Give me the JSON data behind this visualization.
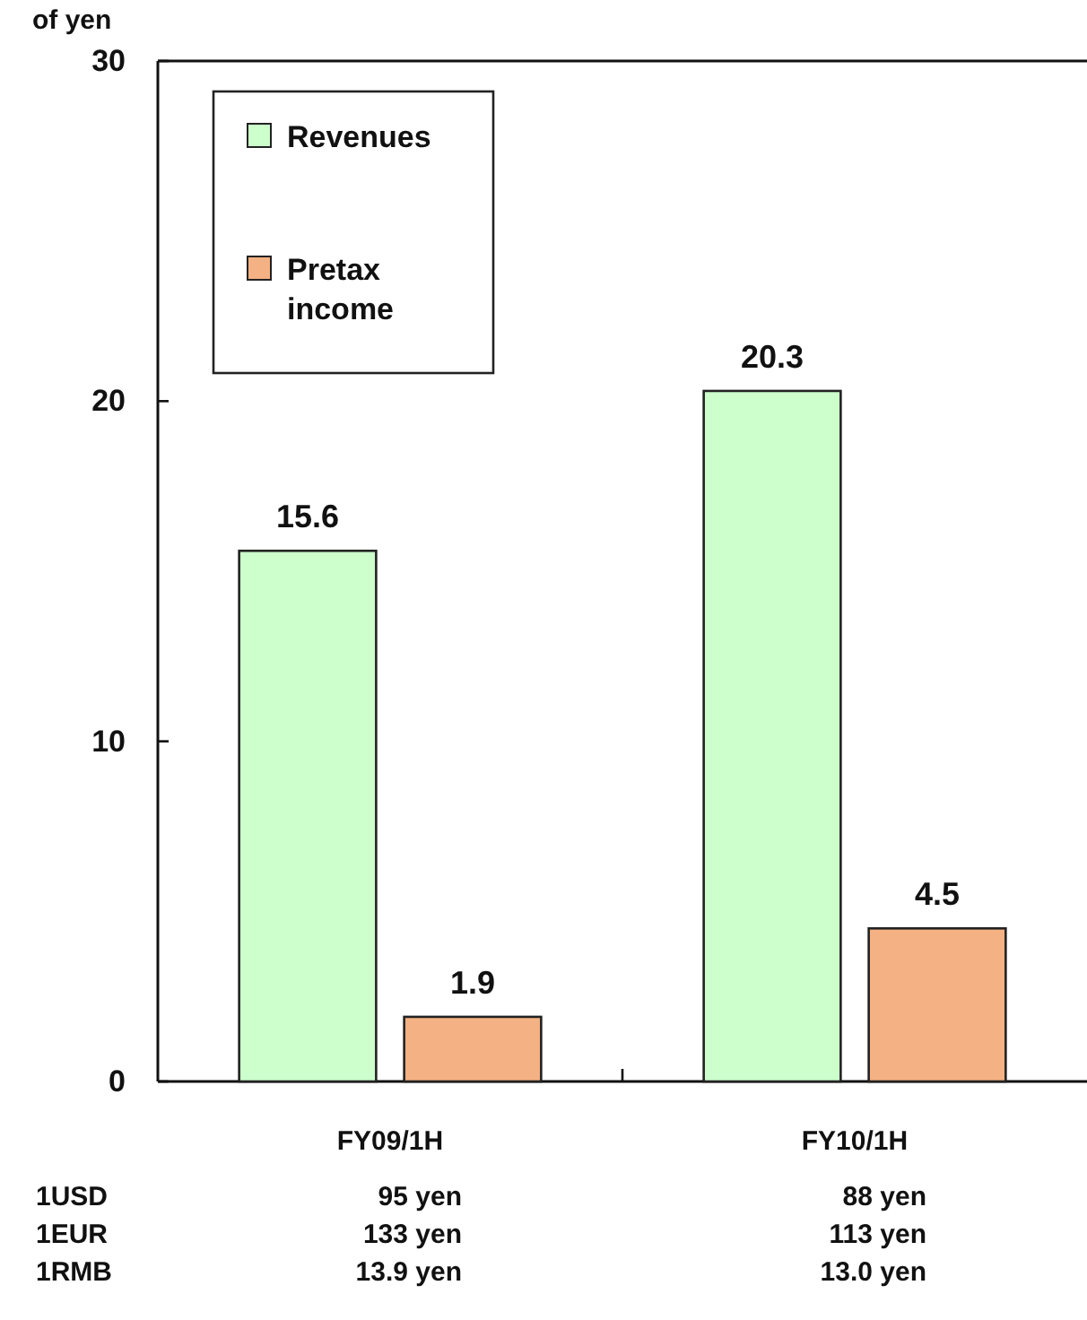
{
  "chart_data": {
    "type": "bar",
    "ylabel": "of yen",
    "categories": [
      "FY09/1H",
      "FY10/1H"
    ],
    "series": [
      {
        "name": "Revenues",
        "color": "#ccffcc",
        "values": [
          15.6,
          20.3
        ]
      },
      {
        "name": "Pretax income",
        "color": "#f4b183",
        "values": [
          1.9,
          4.5
        ]
      }
    ],
    "ylim": [
      0,
      30
    ],
    "yticks": [
      0,
      10,
      20,
      30
    ],
    "data_labels": true,
    "legend": "top left",
    "annotations": [
      "1USD",
      "95 yen",
      "88 yen",
      "1EUR",
      "133 yen",
      "113 yen",
      "1RMB",
      "13.9 yen",
      "13.0 yen"
    ]
  }
}
